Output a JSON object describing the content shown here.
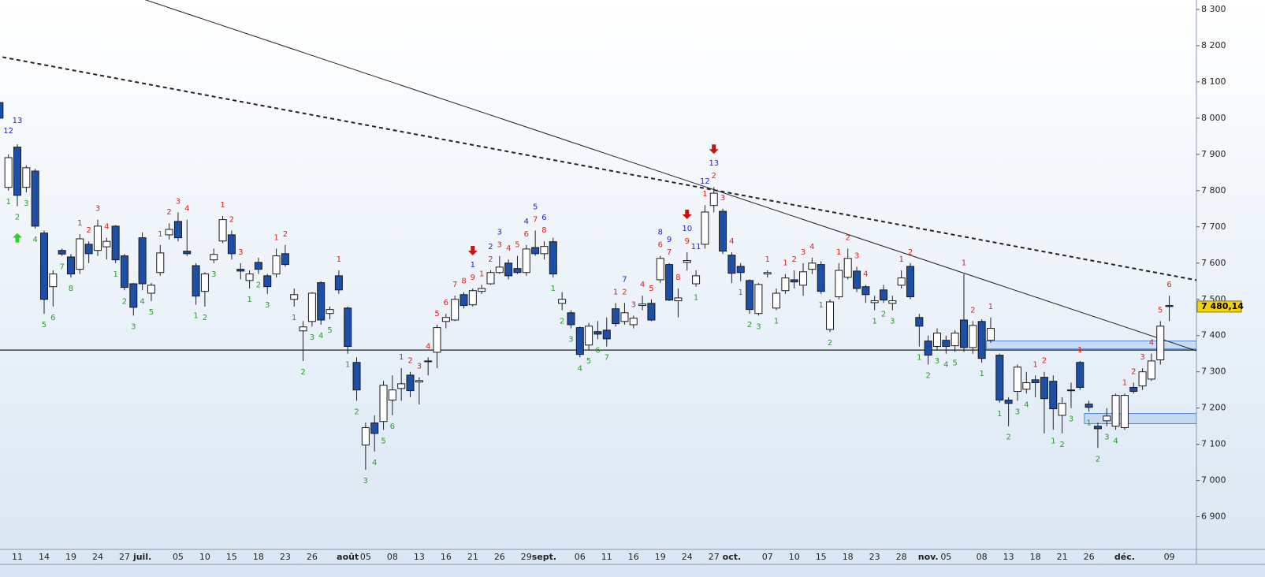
{
  "chart_data": {
    "type": "candlestick",
    "categories": [
      null,
      null,
      "11",
      null,
      null,
      "14",
      null,
      null,
      "19",
      null,
      null,
      "24",
      null,
      null,
      "27",
      null,
      "juil.",
      null,
      null,
      null,
      "05",
      null,
      null,
      "10",
      null,
      null,
      "15",
      null,
      null,
      "18",
      null,
      null,
      "23",
      null,
      null,
      "26",
      null,
      null,
      null,
      "août",
      null,
      "05",
      null,
      null,
      "08",
      null,
      null,
      "13",
      null,
      null,
      "16",
      null,
      null,
      "21",
      null,
      null,
      "26",
      null,
      null,
      "29",
      null,
      "sept.",
      null,
      null,
      null,
      "06",
      null,
      null,
      "11",
      null,
      null,
      "16",
      null,
      null,
      "19",
      null,
      null,
      "24",
      null,
      null,
      "27",
      null,
      "oct.",
      null,
      null,
      null,
      "07",
      null,
      null,
      "10",
      null,
      null,
      "15",
      null,
      null,
      "18",
      null,
      null,
      "23",
      null,
      null,
      "28",
      null,
      null,
      "nov.",
      null,
      "05",
      null,
      null,
      null,
      "08",
      null,
      null,
      "13",
      null,
      null,
      "18",
      null,
      null,
      "21",
      null,
      null,
      "26",
      null,
      null,
      null,
      "déc.",
      null,
      null,
      null,
      null,
      "09"
    ],
    "open": [
      8043,
      7809,
      7920,
      7809,
      7854,
      7683,
      7535,
      7635,
      7617,
      7583,
      7652,
      7635,
      7645,
      7702,
      7620,
      7543,
      7670,
      7517,
      7574,
      7678,
      7715,
      7633,
      7593,
      7522,
      7609,
      7661,
      7678,
      7583,
      7552,
      7602,
      7565,
      7570,
      7626,
      7500,
      7413,
      7439,
      7546,
      7461,
      7565,
      7476,
      7326,
      7098,
      7159,
      7163,
      7222,
      7254,
      7291,
      7272,
      7328,
      7354,
      7439,
      7443,
      7513,
      7485,
      7522,
      7543,
      7574,
      7600,
      7585,
      7574,
      7643,
      7626,
      7659,
      7489,
      7463,
      7422,
      7374,
      7411,
      7415,
      7474,
      7439,
      7430,
      7483,
      7489,
      7554,
      7596,
      7496,
      7602,
      7543,
      7652,
      7759,
      7743,
      7622,
      7591,
      7552,
      7461,
      7570,
      7476,
      7524,
      7554,
      7539,
      7583,
      7596,
      7417,
      7507,
      7561,
      7578,
      7535,
      7491,
      7526,
      7489,
      7539,
      7591,
      7450,
      7385,
      7370,
      7387,
      7372,
      7443,
      7367,
      7439,
      7387,
      7346,
      7222,
      7246,
      7252,
      7278,
      7285,
      7274,
      7180,
      7248,
      7326,
      7211,
      7150,
      7165,
      7150,
      7146,
      7257,
      7261,
      7280,
      7333,
      7483
    ],
    "high": [
      8060,
      7900,
      7928,
      7870,
      7860,
      7690,
      7580,
      7640,
      7625,
      7680,
      7660,
      7720,
      7670,
      7705,
      7625,
      7545,
      7685,
      7545,
      7650,
      7710,
      7740,
      7720,
      7600,
      7575,
      7640,
      7730,
      7690,
      7600,
      7580,
      7615,
      7570,
      7640,
      7650,
      7530,
      7440,
      7520,
      7550,
      7480,
      7580,
      7480,
      7340,
      7160,
      7180,
      7275,
      7290,
      7310,
      7300,
      7285,
      7340,
      7430,
      7460,
      7510,
      7520,
      7530,
      7540,
      7580,
      7620,
      7610,
      7620,
      7650,
      7690,
      7660,
      7670,
      7520,
      7470,
      7425,
      7435,
      7440,
      7450,
      7490,
      7490,
      7455,
      7510,
      7500,
      7620,
      7600,
      7530,
      7630,
      7580,
      7760,
      7810,
      7750,
      7630,
      7600,
      7555,
      7545,
      7580,
      7530,
      7570,
      7580,
      7600,
      7615,
      7605,
      7500,
      7600,
      7640,
      7590,
      7540,
      7510,
      7540,
      7510,
      7580,
      7600,
      7460,
      7400,
      7420,
      7400,
      7415,
      7570,
      7440,
      7445,
      7450,
      7350,
      7230,
      7320,
      7300,
      7290,
      7300,
      7290,
      7230,
      7270,
      7330,
      7220,
      7160,
      7200,
      7240,
      7240,
      7270,
      7310,
      7350,
      7440,
      7510
    ],
    "low": [
      7990,
      7800,
      7757,
      7795,
      7695,
      7460,
      7480,
      7620,
      7560,
      7570,
      7600,
      7620,
      7610,
      7600,
      7525,
      7455,
      7525,
      7495,
      7565,
      7665,
      7660,
      7620,
      7485,
      7480,
      7600,
      7655,
      7610,
      7555,
      7530,
      7570,
      7515,
      7560,
      7590,
      7480,
      7330,
      7425,
      7430,
      7445,
      7515,
      7350,
      7220,
      7030,
      7080,
      7140,
      7180,
      7220,
      7230,
      7210,
      7290,
      7310,
      7420,
      7440,
      7475,
      7480,
      7515,
      7540,
      7570,
      7555,
      7570,
      7565,
      7620,
      7610,
      7560,
      7470,
      7420,
      7340,
      7360,
      7390,
      7370,
      7425,
      7430,
      7420,
      7470,
      7440,
      7545,
      7495,
      7450,
      7580,
      7535,
      7640,
      7740,
      7625,
      7545,
      7550,
      7460,
      7455,
      7560,
      7470,
      7515,
      7530,
      7510,
      7570,
      7515,
      7410,
      7500,
      7555,
      7520,
      7490,
      7470,
      7490,
      7470,
      7530,
      7500,
      7370,
      7320,
      7360,
      7350,
      7355,
      7355,
      7350,
      7325,
      7380,
      7215,
      7150,
      7220,
      7240,
      7230,
      7130,
      7140,
      7130,
      7200,
      7250,
      7190,
      7090,
      7150,
      7140,
      7140,
      7240,
      7250,
      7275,
      7320,
      7440
    ],
    "close": [
      8000,
      7891,
      7787,
      7863,
      7702,
      7500,
      7570,
      7625,
      7570,
      7667,
      7626,
      7702,
      7660,
      7609,
      7533,
      7478,
      7543,
      7539,
      7628,
      7693,
      7670,
      7626,
      7509,
      7570,
      7624,
      7720,
      7626,
      7578,
      7570,
      7583,
      7535,
      7620,
      7596,
      7513,
      7424,
      7517,
      7443,
      7472,
      7526,
      7370,
      7250,
      7146,
      7130,
      7263,
      7250,
      7267,
      7248,
      7276,
      7330,
      7422,
      7450,
      7500,
      7483,
      7524,
      7530,
      7574,
      7589,
      7565,
      7574,
      7639,
      7626,
      7646,
      7570,
      7500,
      7430,
      7348,
      7426,
      7404,
      7391,
      7433,
      7463,
      7448,
      7487,
      7443,
      7613,
      7498,
      7504,
      7607,
      7565,
      7741,
      7793,
      7633,
      7572,
      7574,
      7472,
      7541,
      7574,
      7517,
      7559,
      7548,
      7576,
      7600,
      7522,
      7493,
      7580,
      7613,
      7530,
      7513,
      7496,
      7498,
      7496,
      7559,
      7507,
      7426,
      7346,
      7407,
      7370,
      7407,
      7367,
      7428,
      7337,
      7420,
      7222,
      7213,
      7313,
      7270,
      7270,
      7226,
      7198,
      7213,
      7250,
      7257,
      7202,
      7143,
      7178,
      7235,
      7235,
      7246,
      7300,
      7330,
      7426,
      7480.14
    ],
    "up_color": "#ffffff",
    "down_color": "#1e4fa6",
    "ylim": [
      6810,
      8326
    ],
    "yticks": [
      {
        "value": 8300,
        "label": "8 300"
      },
      {
        "value": 8200,
        "label": "8 200"
      },
      {
        "value": 8100,
        "label": "8 100"
      },
      {
        "value": 8000,
        "label": "8 000"
      },
      {
        "value": 7900,
        "label": "7 900"
      },
      {
        "value": 7800,
        "label": "7 800"
      },
      {
        "value": 7700,
        "label": "7 700"
      },
      {
        "value": 7600,
        "label": "7 600"
      },
      {
        "value": 7500,
        "label": "7 500"
      },
      {
        "value": 7400,
        "label": "7 400"
      },
      {
        "value": 7300,
        "label": "7 300"
      },
      {
        "value": 7200,
        "label": "7 200"
      },
      {
        "value": 7100,
        "label": "7 100"
      },
      {
        "value": 7000,
        "label": "7 000"
      },
      {
        "value": 6900,
        "label": "6 900"
      }
    ],
    "last_price": {
      "value": 7480.14,
      "label": "7 480,14"
    },
    "reference_line": 7360,
    "line_color": "#222222",
    "trendlines": [
      {
        "style": "solid",
        "start": [
          0,
          8461
        ],
        "end": [
          131,
          7383
        ]
      },
      {
        "style": "dashed",
        "start": [
          0,
          8170
        ],
        "end": [
          131,
          7567
        ]
      }
    ],
    "zone_color": "#aac8ee",
    "zones": [
      {
        "start": 111,
        "top": 7385,
        "bottom": 7363
      },
      {
        "start": 122,
        "top": 7185,
        "bottom": 7157
      }
    ],
    "arrows": {
      "up": [
        2
      ],
      "down": [
        53,
        77,
        80
      ],
      "up_color": "#33cc33",
      "down_color": "#cc1111"
    },
    "setup_buy": {
      "color": "#2b9a2b",
      "counts": [
        null,
        1,
        2,
        3,
        4,
        5,
        6,
        7,
        8,
        null,
        null,
        null,
        null,
        1,
        2,
        3,
        4,
        5,
        null,
        null,
        null,
        null,
        1,
        2,
        3,
        null,
        null,
        null,
        1,
        2,
        3,
        null,
        null,
        1,
        2,
        3,
        4,
        5,
        null,
        1,
        2,
        3,
        4,
        5,
        6,
        null,
        null,
        null,
        null,
        null,
        null,
        null,
        null,
        null,
        null,
        null,
        null,
        null,
        null,
        null,
        null,
        null,
        1,
        2,
        3,
        4,
        5,
        6,
        7,
        null,
        null,
        null,
        null,
        null,
        null,
        null,
        null,
        null,
        1,
        null,
        null,
        null,
        null,
        1,
        2,
        3,
        null,
        1,
        null,
        null,
        null,
        null,
        1,
        2,
        null,
        null,
        null,
        null,
        1,
        2,
        3,
        null,
        null,
        1,
        2,
        3,
        4,
        5,
        null,
        null,
        1,
        null,
        1,
        2,
        3,
        4,
        null,
        null,
        1,
        2,
        3,
        null,
        1,
        2,
        3,
        4,
        null,
        null,
        null,
        null,
        null,
        null
      ]
    },
    "setup_sell": {
      "color": "#e0201c",
      "counts": [
        null,
        null,
        null,
        null,
        null,
        null,
        null,
        null,
        null,
        1,
        2,
        3,
        4,
        null,
        null,
        null,
        null,
        null,
        1,
        2,
        3,
        4,
        null,
        null,
        null,
        1,
        2,
        3,
        null,
        null,
        null,
        1,
        2,
        null,
        null,
        null,
        null,
        null,
        1,
        null,
        null,
        null,
        null,
        null,
        null,
        1,
        2,
        3,
        4,
        5,
        6,
        7,
        8,
        9,
        1,
        2,
        3,
        4,
        5,
        6,
        7,
        8,
        null,
        null,
        null,
        null,
        null,
        null,
        null,
        1,
        2,
        3,
        4,
        5,
        6,
        7,
        8,
        9,
        null,
        1,
        2,
        3,
        4,
        null,
        null,
        null,
        1,
        null,
        1,
        2,
        3,
        4,
        null,
        null,
        1,
        2,
        3,
        4,
        null,
        null,
        null,
        1,
        2,
        null,
        null,
        null,
        null,
        null,
        1,
        2,
        null,
        1,
        null,
        null,
        null,
        null,
        1,
        2,
        null,
        null,
        null,
        1,
        null,
        null,
        null,
        null,
        1,
        2,
        3,
        4,
        5,
        6
      ]
    },
    "countdown": {
      "color": "#2323c8",
      "counts": [
        null,
        12,
        13,
        null,
        null,
        null,
        null,
        null,
        null,
        null,
        null,
        null,
        null,
        null,
        null,
        null,
        null,
        null,
        null,
        null,
        null,
        null,
        null,
        null,
        null,
        null,
        null,
        null,
        null,
        null,
        null,
        null,
        null,
        null,
        null,
        null,
        null,
        null,
        null,
        null,
        null,
        null,
        null,
        null,
        null,
        null,
        null,
        null,
        null,
        null,
        null,
        null,
        null,
        1,
        null,
        2,
        3,
        null,
        null,
        4,
        5,
        6,
        null,
        null,
        null,
        null,
        null,
        null,
        null,
        null,
        7,
        null,
        null,
        null,
        8,
        9,
        null,
        10,
        11,
        12,
        13,
        null,
        null,
        null,
        null,
        null,
        null,
        null,
        null,
        null,
        null,
        null,
        null,
        null,
        null,
        null,
        null,
        null,
        null,
        null,
        null,
        null,
        null,
        null,
        null,
        null,
        null,
        null,
        null,
        null,
        null,
        null,
        null,
        null,
        null,
        null,
        null,
        null,
        null,
        null,
        null,
        null,
        null,
        null,
        null,
        null,
        null,
        null,
        null,
        null,
        null,
        null
      ]
    }
  }
}
